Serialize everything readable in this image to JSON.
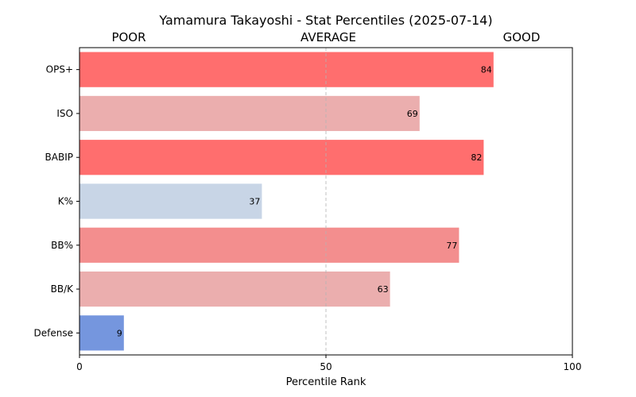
{
  "chart_data": {
    "type": "bar",
    "orientation": "horizontal",
    "title": "Yamamura Takayoshi - Stat Percentiles (2025-07-14)",
    "xlabel": "Percentile Rank",
    "ylabel": "",
    "xlim": [
      0,
      100
    ],
    "xticks": [
      "0",
      "50",
      "100"
    ],
    "zone_labels": [
      "POOR",
      "AVERAGE",
      "GOOD"
    ],
    "reference_line": 50,
    "categories": [
      "OPS+",
      "ISO",
      "BABIP",
      "K%",
      "BB%",
      "BB/K",
      "Defense"
    ],
    "values": [
      84,
      69,
      82,
      37,
      77,
      63,
      9
    ],
    "bar_colors": [
      "#ff6e6e",
      "#ebaeae",
      "#ff6e6e",
      "#c8d5e6",
      "#f38e8e",
      "#ebaeae",
      "#7596de"
    ],
    "grid": false,
    "legend": "none"
  }
}
